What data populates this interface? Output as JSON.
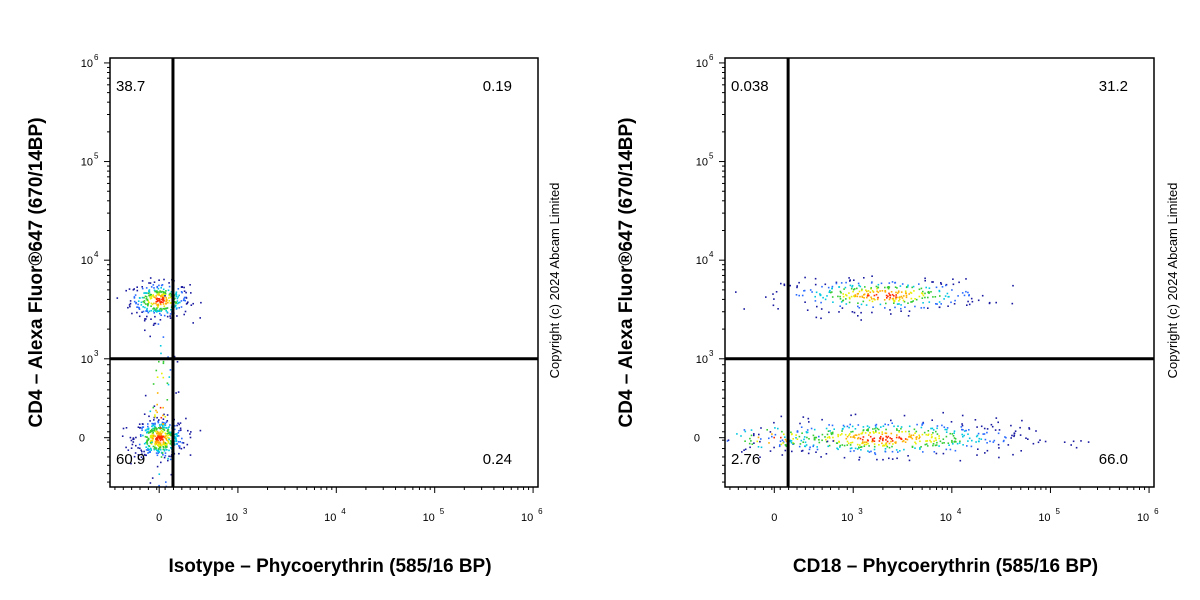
{
  "copyright": "Copyright (c) 2024 Abcam Limited",
  "chart_data": [
    {
      "type": "scatter",
      "subtype": "flow-cytometry-density-dot-plot",
      "xlabel": "Isotype – Phycoerythrin (585/16 BP)",
      "ylabel": "CD4 – Alexa Fluor®647 (670/14BP)",
      "x_scale": "biexponential",
      "y_scale": "biexponential",
      "x_ticks": [
        {
          "base": "",
          "exp": "",
          "label": "0",
          "value": 0
        },
        {
          "base": "10",
          "exp": "3",
          "value": 1000
        },
        {
          "base": "10",
          "exp": "4",
          "value": 10000
        },
        {
          "base": "10",
          "exp": "5",
          "value": 100000
        },
        {
          "base": "10",
          "exp": "6",
          "value": 1000000
        }
      ],
      "y_ticks": [
        {
          "base": "",
          "exp": "",
          "label": "0",
          "value": 0
        },
        {
          "base": "10",
          "exp": "3",
          "value": 1000
        },
        {
          "base": "10",
          "exp": "4",
          "value": 10000
        },
        {
          "base": "10",
          "exp": "5",
          "value": 100000
        },
        {
          "base": "10",
          "exp": "6",
          "value": 1000000
        }
      ],
      "gate": {
        "x": 150,
        "y": 1000
      },
      "quadrants": {
        "upper_left": "38.7",
        "upper_right": "0.19",
        "lower_left": "60.9",
        "lower_right": "0.24"
      },
      "populations": [
        {
          "name": "",
          "x": 0,
          "y": 4000,
          "count": 320,
          "spread_x": 0.15,
          "spread_y": 0.09
        },
        {
          "name": "",
          "x": 0,
          "y": 0,
          "count": 420,
          "spread_x": 0.13,
          "spread_y": 0.1
        },
        {
          "name": "",
          "x": 0,
          "y": 300,
          "count": 70,
          "spread_x": 0.08,
          "spread_y": 0.5
        }
      ],
      "grid": false,
      "legend": "none"
    },
    {
      "type": "scatter",
      "subtype": "flow-cytometry-density-dot-plot",
      "xlabel": "CD18 – Phycoerythrin (585/16 BP)",
      "ylabel": "CD4 – Alexa Fluor®647 (670/14BP)",
      "x_scale": "biexponential",
      "y_scale": "biexponential",
      "x_ticks": [
        {
          "base": "",
          "exp": "",
          "label": "0",
          "value": 0
        },
        {
          "base": "10",
          "exp": "3",
          "value": 1000
        },
        {
          "base": "10",
          "exp": "4",
          "value": 10000
        },
        {
          "base": "10",
          "exp": "5",
          "value": 100000
        },
        {
          "base": "10",
          "exp": "6",
          "value": 1000000
        }
      ],
      "y_ticks": [
        {
          "base": "",
          "exp": "",
          "label": "0",
          "value": 0
        },
        {
          "base": "10",
          "exp": "3",
          "value": 1000
        },
        {
          "base": "10",
          "exp": "4",
          "value": 10000
        },
        {
          "base": "10",
          "exp": "5",
          "value": 100000
        },
        {
          "base": "10",
          "exp": "6",
          "value": 1000000
        }
      ],
      "gate": {
        "x": 150,
        "y": 1000
      },
      "quadrants": {
        "upper_left": "0.038",
        "upper_right": "31.2",
        "lower_left": "2.76",
        "lower_right": "66.0"
      },
      "populations": [
        {
          "name": "",
          "x": 2000,
          "y": 4500,
          "count": 340,
          "spread_x": 0.5,
          "spread_y": 0.08
        },
        {
          "name": "",
          "x": 2000,
          "y": 0,
          "count": 520,
          "spread_x": 0.7,
          "spread_y": 0.09
        },
        {
          "name": "",
          "x": 0,
          "y": 0,
          "count": 60,
          "spread_x": 0.3,
          "spread_y": 0.08
        }
      ],
      "grid": false,
      "legend": "none"
    }
  ]
}
